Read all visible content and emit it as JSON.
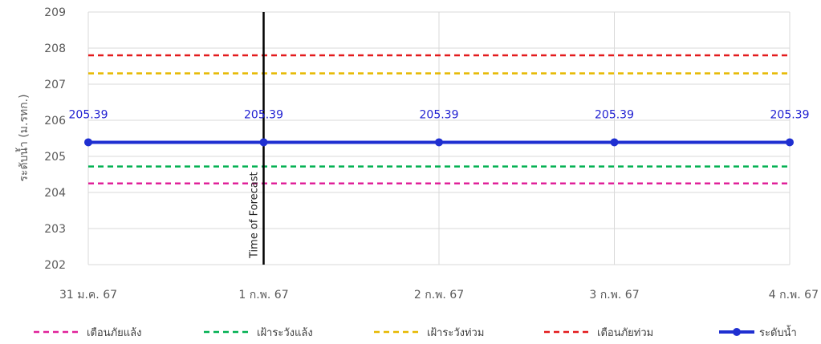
{
  "chart_data": {
    "type": "line",
    "categories": [
      "31 ม.ค. 67",
      "1 ก.พ. 67",
      "2 ก.พ. 67",
      "3 ก.พ. 67",
      "4 ก.พ. 67"
    ],
    "ylabel": "ระดับน้ำ (ม.รทก.)",
    "xlabel": "",
    "ylim": [
      202,
      209
    ],
    "yticks": [
      202,
      203,
      204,
      205,
      206,
      207,
      208,
      209
    ],
    "grid": true,
    "legend_position": "bottom",
    "forecast_marker": {
      "category": "1 ก.พ. 67",
      "label": "Time of Forecast",
      "color": "#000000"
    },
    "threshold_lines": [
      {
        "name": "เตือนภัยแล้ง",
        "value": 204.25,
        "color": "#e0219a",
        "style": "dashed"
      },
      {
        "name": "เฝ้าระวังแล้ง",
        "value": 204.72,
        "color": "#00b050",
        "style": "dashed"
      },
      {
        "name": "เฝ้าระวังท่วม",
        "value": 207.3,
        "color": "#e6b800",
        "style": "dashed"
      },
      {
        "name": "เตือนภัยท่วม",
        "value": 207.8,
        "color": "#e31a1c",
        "style": "dashed"
      }
    ],
    "series": [
      {
        "name": "ระดับน้ำ",
        "values": [
          205.39,
          205.39,
          205.39,
          205.39,
          205.39
        ],
        "labels": [
          "205.39",
          "205.39",
          "205.39",
          "205.39",
          "205.39"
        ],
        "color": "#1f2fd1"
      }
    ]
  }
}
